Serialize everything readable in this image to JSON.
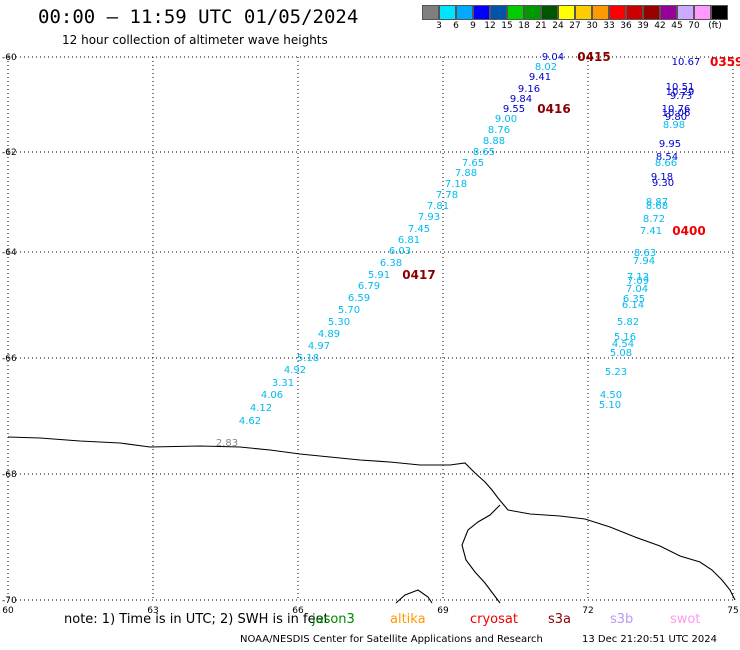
{
  "header": {
    "title": "00:00 – 11:59 UTC 01/05/2024",
    "subtitle": "12 hour collection of altimeter wave heights"
  },
  "colorbar": {
    "colors": [
      "#7f7f7f",
      "#00e5ff",
      "#00aaff",
      "#0000ff",
      "#0055aa",
      "#00cc00",
      "#009900",
      "#005500",
      "#ffff00",
      "#ffcc00",
      "#ff9900",
      "#ff0000",
      "#cc0000",
      "#990000",
      "#990099",
      "#ccaaff",
      "#ff99ff",
      "#000000"
    ],
    "labels": [
      "3",
      "6",
      "9",
      "12",
      "15",
      "18",
      "21",
      "24",
      "27",
      "30",
      "33",
      "36",
      "39",
      "42",
      "45",
      "70",
      "(ft)"
    ]
  },
  "map": {
    "lat_labels": [
      "-60",
      "-62",
      "-64",
      "-66",
      "-68",
      "-70"
    ],
    "lon_labels": [
      "60",
      "63",
      "66",
      "69",
      "72",
      "75"
    ],
    "grid": true,
    "cyan_track": [
      {
        "v": "8.02",
        "c": "#00bbee"
      },
      {
        "v": "9.00",
        "c": "#00bbee"
      },
      {
        "v": "8.76",
        "c": "#00bbee"
      },
      {
        "v": "8.88",
        "c": "#00bbee"
      },
      {
        "v": "8.65",
        "c": "#00bbee"
      },
      {
        "v": "7.65",
        "c": "#00bbee"
      },
      {
        "v": "7.88",
        "c": "#00bbee"
      },
      {
        "v": "7.18",
        "c": "#00bbee"
      },
      {
        "v": "7.78",
        "c": "#00bbee"
      },
      {
        "v": "7.81",
        "c": "#00bbee"
      },
      {
        "v": "7.93",
        "c": "#00bbee"
      },
      {
        "v": "7.45",
        "c": "#00bbee"
      },
      {
        "v": "6.81",
        "c": "#00bbee"
      },
      {
        "v": "6.03",
        "c": "#00bbee"
      },
      {
        "v": "6.38",
        "c": "#00bbee"
      },
      {
        "v": "5.91",
        "c": "#00bbee"
      },
      {
        "v": "6.79",
        "c": "#00bbee"
      },
      {
        "v": "6.59",
        "c": "#00bbee"
      },
      {
        "v": "5.70",
        "c": "#00bbee"
      },
      {
        "v": "5.30",
        "c": "#00bbee"
      },
      {
        "v": "4.89",
        "c": "#00bbee"
      },
      {
        "v": "4.97",
        "c": "#00bbee"
      },
      {
        "v": "5.18",
        "c": "#00bbee"
      },
      {
        "v": "4.92",
        "c": "#00bbee"
      },
      {
        "v": "3.31",
        "c": "#00bbee"
      },
      {
        "v": "4.06",
        "c": "#00bbee"
      },
      {
        "v": "4.12",
        "c": "#00bbee"
      },
      {
        "v": "4.62",
        "c": "#00bbee"
      },
      {
        "v": "2.83",
        "c": "#888888"
      }
    ],
    "blue_track": [
      {
        "v": "9.04",
        "c": "#0000cc"
      },
      {
        "v": "9.41",
        "c": "#0000cc"
      },
      {
        "v": "9.16",
        "c": "#0000cc"
      },
      {
        "v": "9.84",
        "c": "#0000cc"
      },
      {
        "v": "9.55",
        "c": "#0000cc"
      }
    ],
    "right_track": [
      {
        "v": "10.67",
        "c": "#0000cc"
      },
      {
        "v": "10.51",
        "c": "#0000cc"
      },
      {
        "v": "10.29",
        "c": "#0000cc"
      },
      {
        "v": "9.73",
        "c": "#0000cc"
      },
      {
        "v": "10.76",
        "c": "#0000cc"
      },
      {
        "v": "10.06",
        "c": "#0000cc"
      },
      {
        "v": "9.80",
        "c": "#0000cc"
      },
      {
        "v": "8.98",
        "c": "#00bbee"
      },
      {
        "v": "9.95",
        "c": "#0000cc"
      },
      {
        "v": "8.54",
        "c": "#0000cc"
      },
      {
        "v": "8.66",
        "c": "#00bbee"
      },
      {
        "v": "9.18",
        "c": "#0000cc"
      },
      {
        "v": "9.30",
        "c": "#0000cc"
      },
      {
        "v": "8.87",
        "c": "#00bbee"
      },
      {
        "v": "8.68",
        "c": "#00bbee"
      },
      {
        "v": "8.72",
        "c": "#00bbee"
      },
      {
        "v": "7.41",
        "c": "#00bbee"
      },
      {
        "v": "8.63",
        "c": "#00bbee"
      },
      {
        "v": "7.94",
        "c": "#00bbee"
      },
      {
        "v": "7.13",
        "c": "#00bbee"
      },
      {
        "v": "7.09",
        "c": "#00bbee"
      },
      {
        "v": "7.04",
        "c": "#00bbee"
      },
      {
        "v": "6.35",
        "c": "#00bbee"
      },
      {
        "v": "6.14",
        "c": "#00bbee"
      },
      {
        "v": "5.82",
        "c": "#00bbee"
      },
      {
        "v": "5.16",
        "c": "#00bbee"
      },
      {
        "v": "4.54",
        "c": "#00bbee"
      },
      {
        "v": "5.08",
        "c": "#00bbee"
      },
      {
        "v": "5.23",
        "c": "#00bbee"
      },
      {
        "v": "4.50",
        "c": "#00bbee"
      },
      {
        "v": "5.10",
        "c": "#00bbee"
      }
    ],
    "time_labels": [
      {
        "t": "0415",
        "c": "#880000"
      },
      {
        "t": "0416",
        "c": "#880000"
      },
      {
        "t": "0417",
        "c": "#880000"
      },
      {
        "t": "0400",
        "c": "#ee0000"
      },
      {
        "t": "0359",
        "c": "#ee0000"
      }
    ]
  },
  "footer": {
    "note": "note: 1) Time is in UTC; 2) SWH is in feet",
    "satellites": [
      {
        "name": "jason3",
        "color": "#008800"
      },
      {
        "name": "altika",
        "color": "#ff9900"
      },
      {
        "name": "cryosat",
        "color": "#ee0000"
      },
      {
        "name": "s3a",
        "color": "#880000"
      },
      {
        "name": "s3b",
        "color": "#bb99ee"
      },
      {
        "name": "swot",
        "color": "#ff99ee"
      }
    ],
    "credit": "NOAA/NESDIS Center for Satellite Applications and Research",
    "timestamp": "13 Dec 21:20:51 UTC 2024"
  }
}
